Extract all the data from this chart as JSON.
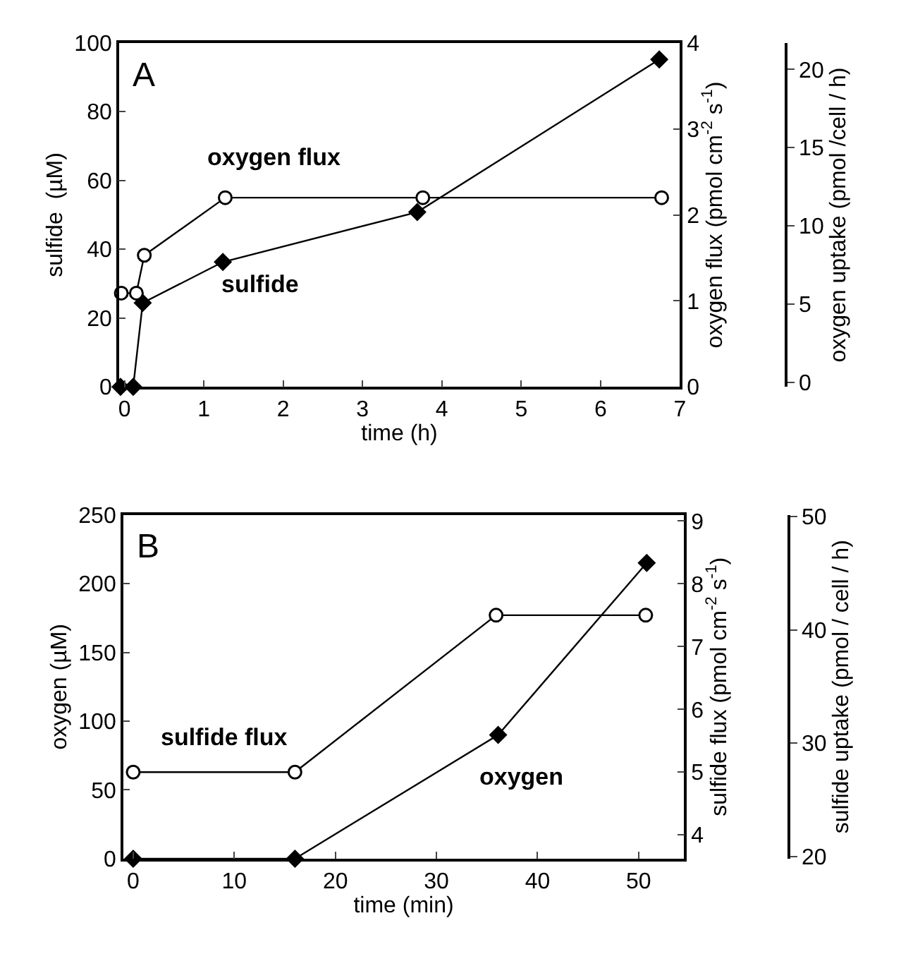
{
  "chart_data": [
    {
      "type": "line",
      "annotations": [
        "A"
      ],
      "xlabel": "time (h)",
      "ylabel": "sulfide  (µM)",
      "y2label": "oxygen flux (pmol cm$^{-2}$ s$^{-1}$)",
      "y3label": "oxygen uptake (pmol /cell / h)",
      "xlim": [
        -0.07,
        7
      ],
      "xticks": [
        0,
        1,
        2,
        3,
        4,
        5,
        6,
        7
      ],
      "ylim": [
        0,
        100
      ],
      "yticks": [
        0,
        20,
        40,
        60,
        80,
        100
      ],
      "y2lim": [
        0,
        4
      ],
      "y2ticks": [
        0,
        1,
        2,
        3,
        4
      ],
      "y3lim": [
        -0.3,
        21.7
      ],
      "y3ticks": [
        0,
        5,
        10,
        15,
        20
      ],
      "line_style": "solid",
      "series": [
        {
          "name": "sulfide",
          "color": "#000000",
          "marker": "diamond",
          "axis": "y",
          "x": [
            -0.05,
            0.11,
            0.23,
            1.24,
            3.69,
            6.74
          ],
          "values": [
            0,
            0,
            24.4,
            36.3,
            50.8,
            95.2
          ]
        },
        {
          "name": "oxygen flux",
          "color": "#000000",
          "marker": "circle",
          "axis": "y2",
          "x": [
            -0.04,
            0.15,
            0.25,
            1.27,
            3.76,
            6.77
          ],
          "values": [
            1.09,
            1.09,
            1.53,
            2.2,
            2.2,
            2.2
          ]
        }
      ]
    },
    {
      "type": "line",
      "annotations": [
        "B"
      ],
      "xlabel": "time (min)",
      "ylabel": "oxygen (µM)",
      "y2label": "sulfide flux (pmol cm$^{-2}$ s$^{-1}$)",
      "y3label": "sulfide uptake (pmol / cell / h)",
      "xlim": [
        -1,
        54.5
      ],
      "xticks": [
        0,
        10,
        20,
        30,
        40,
        50
      ],
      "ylim": [
        0,
        250
      ],
      "yticks": [
        0,
        50,
        100,
        150,
        200,
        250
      ],
      "y2lim": [
        3.62,
        9.1
      ],
      "y2ticks": [
        4,
        5,
        6,
        7,
        8,
        9
      ],
      "y3lim": [
        19.8,
        50.15
      ],
      "y3ticks": [
        20,
        30,
        40,
        50
      ],
      "line_style": "solid",
      "series": [
        {
          "name": "oxygen",
          "color": "#000000",
          "marker": "diamond",
          "axis": "y",
          "x": [
            0,
            16,
            36.1,
            50.8
          ],
          "values": [
            0,
            0,
            90,
            215
          ]
        },
        {
          "name": "sulfide flux",
          "color": "#000000",
          "marker": "circle",
          "axis": "y2",
          "x": [
            0,
            16,
            35.9,
            50.7
          ],
          "values": [
            5.0,
            5.0,
            7.5,
            7.5
          ]
        }
      ]
    }
  ]
}
